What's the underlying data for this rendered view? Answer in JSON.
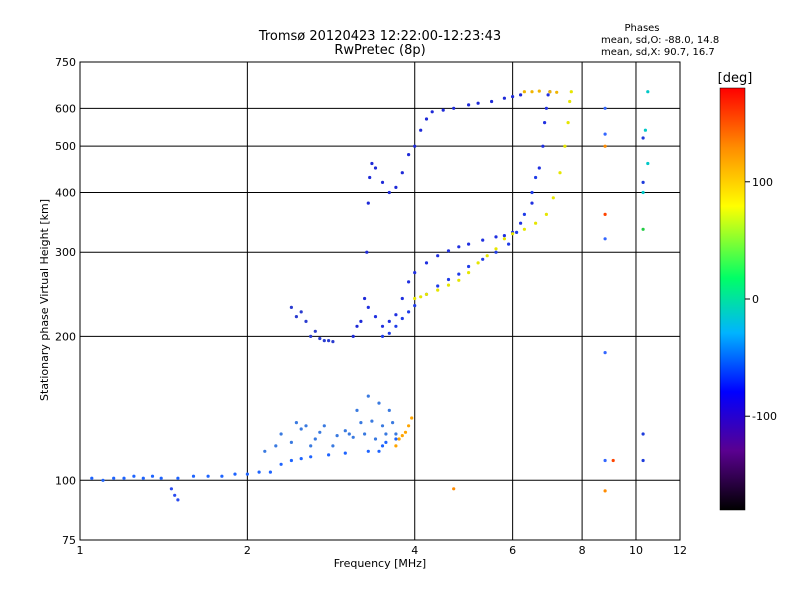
{
  "chart_data": {
    "type": "scatter",
    "title": "Tromsø 20120423 12:22:00-12:23:43",
    "subtitle": "RwPretec (8p)",
    "xlabel": "Frequency [MHz]",
    "ylabel": "Stationary phase Virtual Height [km]",
    "x_scale": "log",
    "y_scale": "log",
    "xlim": [
      1,
      12
    ],
    "ylim": [
      75,
      750
    ],
    "xticks": [
      1,
      2,
      4,
      6,
      8,
      10,
      12
    ],
    "yticks": [
      75,
      100,
      200,
      300,
      400,
      500,
      600,
      750
    ],
    "grid": true,
    "info": {
      "heading": "Phases",
      "line1": "mean, sd,O: -88.0, 14.8",
      "line2": "mean, sd,X: 90.7, 16.7"
    },
    "colorbar": {
      "label": "[deg]",
      "range": [
        -180,
        180
      ],
      "ticks": [
        100,
        0,
        -100
      ],
      "colors": [
        "#000000",
        "#5a0090",
        "#0000ff",
        "#00b4ff",
        "#00ff66",
        "#ffff00",
        "#ff8c00",
        "#ff0000"
      ]
    },
    "series": [
      {
        "color": "#1e64ff",
        "points": [
          [
            1.05,
            101
          ],
          [
            1.1,
            100
          ],
          [
            1.15,
            101
          ],
          [
            1.2,
            101
          ],
          [
            1.25,
            102
          ],
          [
            1.3,
            101
          ],
          [
            1.35,
            102
          ],
          [
            1.4,
            101
          ],
          [
            1.5,
            101
          ],
          [
            1.6,
            102
          ],
          [
            1.7,
            102
          ],
          [
            1.8,
            102
          ],
          [
            1.9,
            103
          ],
          [
            2.0,
            103
          ],
          [
            2.1,
            104
          ],
          [
            2.2,
            104
          ],
          [
            2.3,
            108
          ],
          [
            2.4,
            110
          ],
          [
            2.5,
            111
          ],
          [
            2.6,
            112
          ],
          [
            2.8,
            113
          ],
          [
            3.0,
            114
          ],
          [
            3.3,
            115
          ],
          [
            3.45,
            115
          ],
          [
            3.5,
            118
          ],
          [
            3.55,
            120
          ],
          [
            3.7,
            122
          ]
        ]
      },
      {
        "color": "#2a4cf0",
        "points": [
          [
            1.46,
            96
          ],
          [
            1.48,
            93
          ],
          [
            1.5,
            91
          ]
        ]
      },
      {
        "color": "#3a7ae0",
        "points": [
          [
            2.15,
            115
          ],
          [
            2.25,
            118
          ],
          [
            2.3,
            125
          ],
          [
            2.4,
            120
          ],
          [
            2.45,
            132
          ],
          [
            2.5,
            128
          ],
          [
            2.55,
            130
          ],
          [
            2.6,
            118
          ],
          [
            2.65,
            122
          ],
          [
            2.7,
            126
          ],
          [
            2.75,
            130
          ],
          [
            2.85,
            118
          ],
          [
            2.9,
            124
          ],
          [
            3.0,
            127
          ],
          [
            3.05,
            125
          ],
          [
            3.1,
            123
          ],
          [
            3.15,
            140
          ],
          [
            3.2,
            132
          ],
          [
            3.25,
            125
          ],
          [
            3.3,
            150
          ],
          [
            3.35,
            133
          ],
          [
            3.4,
            122
          ],
          [
            3.45,
            145
          ],
          [
            3.5,
            130
          ],
          [
            3.55,
            125
          ],
          [
            3.6,
            140
          ],
          [
            3.65,
            132
          ],
          [
            3.7,
            125
          ]
        ]
      },
      {
        "color": "#ffa500",
        "points": [
          [
            3.7,
            118
          ],
          [
            3.75,
            122
          ],
          [
            3.8,
            124
          ],
          [
            3.85,
            126
          ],
          [
            3.9,
            130
          ],
          [
            3.95,
            135
          ]
        ]
      },
      {
        "color": "#2a3cd0",
        "points": [
          [
            2.4,
            230
          ],
          [
            2.45,
            220
          ],
          [
            2.5,
            225
          ],
          [
            2.55,
            215
          ],
          [
            2.6,
            200
          ],
          [
            2.65,
            205
          ],
          [
            2.7,
            198
          ],
          [
            2.75,
            196
          ],
          [
            2.8,
            196
          ],
          [
            2.85,
            195
          ]
        ]
      },
      {
        "color": "#1e2ad8",
        "points": [
          [
            3.1,
            200
          ],
          [
            3.15,
            210
          ],
          [
            3.2,
            215
          ],
          [
            3.25,
            240
          ],
          [
            3.28,
            300
          ],
          [
            3.3,
            380
          ],
          [
            3.32,
            430
          ],
          [
            3.35,
            460
          ],
          [
            3.4,
            450
          ],
          [
            3.5,
            420
          ],
          [
            3.6,
            400
          ],
          [
            3.7,
            410
          ],
          [
            3.8,
            440
          ],
          [
            3.9,
            480
          ],
          [
            4.0,
            500
          ],
          [
            4.1,
            540
          ],
          [
            4.2,
            570
          ],
          [
            4.3,
            590
          ],
          [
            4.5,
            595
          ],
          [
            4.7,
            600
          ],
          [
            5.0,
            610
          ],
          [
            5.2,
            615
          ],
          [
            5.5,
            620
          ],
          [
            5.8,
            630
          ],
          [
            6.0,
            635
          ],
          [
            6.2,
            640
          ]
        ]
      },
      {
        "color": "#2030e0",
        "points": [
          [
            3.3,
            230
          ],
          [
            3.4,
            220
          ],
          [
            3.5,
            210
          ],
          [
            3.6,
            215
          ],
          [
            3.7,
            222
          ],
          [
            3.8,
            240
          ],
          [
            3.9,
            260
          ],
          [
            4.0,
            272
          ],
          [
            4.2,
            285
          ],
          [
            4.4,
            295
          ],
          [
            4.6,
            302
          ],
          [
            4.8,
            308
          ],
          [
            5.0,
            312
          ],
          [
            5.3,
            318
          ],
          [
            5.6,
            323
          ],
          [
            5.8,
            325
          ],
          [
            6.0,
            330
          ],
          [
            6.2,
            345
          ],
          [
            6.5,
            380
          ],
          [
            6.7,
            450
          ],
          [
            6.8,
            500
          ],
          [
            6.85,
            560
          ],
          [
            6.9,
            600
          ],
          [
            6.95,
            640
          ],
          [
            7.0,
            650
          ]
        ]
      },
      {
        "color": "#1f3ce8",
        "points": [
          [
            3.5,
            200
          ],
          [
            3.6,
            203
          ],
          [
            3.7,
            210
          ],
          [
            3.8,
            218
          ],
          [
            3.9,
            225
          ],
          [
            4.0,
            232
          ],
          [
            4.2,
            245
          ],
          [
            4.4,
            255
          ],
          [
            4.6,
            263
          ],
          [
            4.8,
            270
          ],
          [
            5.0,
            280
          ],
          [
            5.3,
            290
          ],
          [
            5.6,
            300
          ],
          [
            5.9,
            312
          ],
          [
            6.1,
            330
          ],
          [
            6.3,
            360
          ],
          [
            6.5,
            400
          ],
          [
            6.6,
            430
          ]
        ]
      },
      {
        "color": "#e6e600",
        "points": [
          [
            4.0,
            240
          ],
          [
            4.1,
            242
          ],
          [
            4.2,
            245
          ],
          [
            4.4,
            250
          ],
          [
            4.6,
            256
          ],
          [
            4.8,
            262
          ],
          [
            5.0,
            272
          ],
          [
            5.2,
            285
          ],
          [
            5.4,
            295
          ],
          [
            5.6,
            305
          ],
          [
            5.8,
            320
          ],
          [
            6.0,
            328
          ],
          [
            6.3,
            335
          ],
          [
            6.6,
            345
          ],
          [
            6.9,
            360
          ],
          [
            7.1,
            390
          ],
          [
            7.3,
            440
          ],
          [
            7.45,
            500
          ],
          [
            7.55,
            560
          ],
          [
            7.6,
            620
          ],
          [
            7.65,
            650
          ]
        ]
      },
      {
        "color": "#f0b400",
        "points": [
          [
            6.3,
            650
          ],
          [
            6.5,
            650
          ],
          [
            6.7,
            652
          ],
          [
            7.0,
            650
          ],
          [
            7.2,
            648
          ]
        ]
      },
      {
        "color": "#3366ff",
        "points": [
          [
            8.8,
            600
          ],
          [
            8.8,
            530
          ],
          [
            8.8,
            320
          ],
          [
            8.8,
            185
          ],
          [
            8.8,
            110
          ]
        ]
      },
      {
        "color": "#ff4400",
        "points": [
          [
            8.8,
            360
          ],
          [
            9.1,
            110
          ]
        ]
      },
      {
        "color": "#ff8c00",
        "points": [
          [
            8.8,
            500
          ],
          [
            8.8,
            95
          ],
          [
            4.7,
            96
          ]
        ]
      },
      {
        "color": "#00c8c8",
        "points": [
          [
            10.5,
            650
          ],
          [
            10.4,
            540
          ],
          [
            10.5,
            460
          ],
          [
            10.3,
            400
          ]
        ]
      },
      {
        "color": "#1e3cdc",
        "points": [
          [
            10.3,
            520
          ],
          [
            10.3,
            420
          ],
          [
            10.3,
            125
          ],
          [
            10.3,
            110
          ]
        ]
      },
      {
        "color": "#22cc44",
        "points": [
          [
            10.3,
            335
          ]
        ]
      }
    ]
  }
}
